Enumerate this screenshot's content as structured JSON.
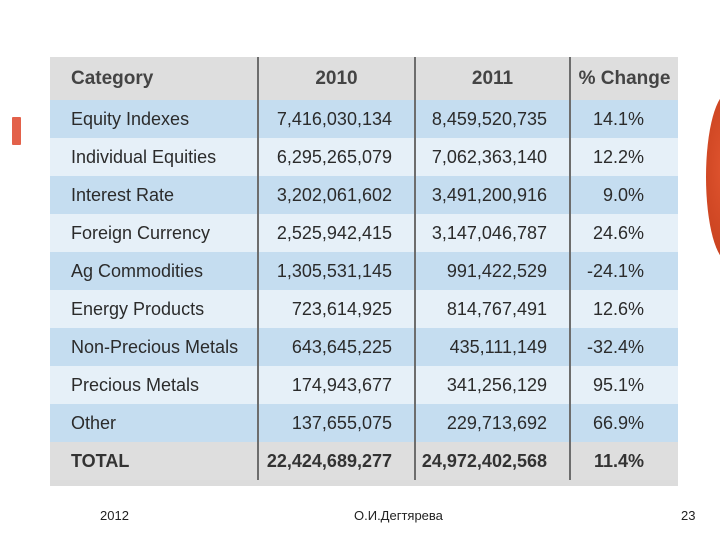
{
  "table": {
    "headers": [
      "Category",
      "2010",
      "2011",
      "% Change"
    ],
    "rows": [
      {
        "category": "Equity Indexes",
        "y2010": "7,416,030,134",
        "y2011": "8,459,520,735",
        "change": "14.1%"
      },
      {
        "category": "Individual Equities",
        "y2010": "6,295,265,079",
        "y2011": "7,062,363,140",
        "change": "12.2%"
      },
      {
        "category": "Interest Rate",
        "y2010": "3,202,061,602",
        "y2011": "3,491,200,916",
        "change": "9.0%"
      },
      {
        "category": "Foreign Currency",
        "y2010": "2,525,942,415",
        "y2011": "3,147,046,787",
        "change": "24.6%"
      },
      {
        "category": "Ag Commodities",
        "y2010": "1,305,531,145",
        "y2011": "991,422,529",
        "change": "-24.1%"
      },
      {
        "category": "Energy Products",
        "y2010": "723,614,925",
        "y2011": "814,767,491",
        "change": "12.6%"
      },
      {
        "category": "Non-Precious Metals",
        "y2010": "643,645,225",
        "y2011": "435,111,149",
        "change": "-32.4%"
      },
      {
        "category": "Precious Metals",
        "y2010": "174,943,677",
        "y2011": "341,256,129",
        "change": "95.1%"
      },
      {
        "category": "Other",
        "y2010": "137,655,075",
        "y2011": "229,713,692",
        "change": "66.9%"
      }
    ],
    "total": {
      "category": "TOTAL",
      "y2010": "22,424,689,277",
      "y2011": "24,972,402,568",
      "change": "11.4%"
    }
  },
  "footer": {
    "year": "2012",
    "author": "О.И.Дегтярева",
    "page": "23"
  },
  "colors": {
    "header_bg": "#dedede",
    "row_dark": "#c5ddf0",
    "row_light": "#e6f0f8",
    "accent": "#c9421f"
  }
}
